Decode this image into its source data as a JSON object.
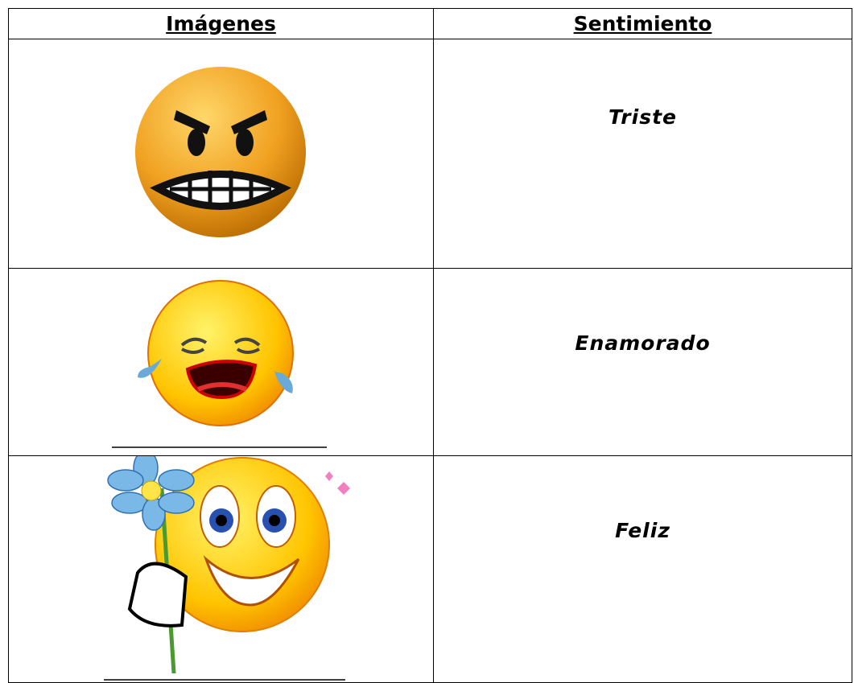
{
  "table": {
    "header": [
      "Imágenes",
      "Sentimiento"
    ],
    "rows": [
      "Triste",
      "Enamorado",
      "Feliz"
    ]
  }
}
